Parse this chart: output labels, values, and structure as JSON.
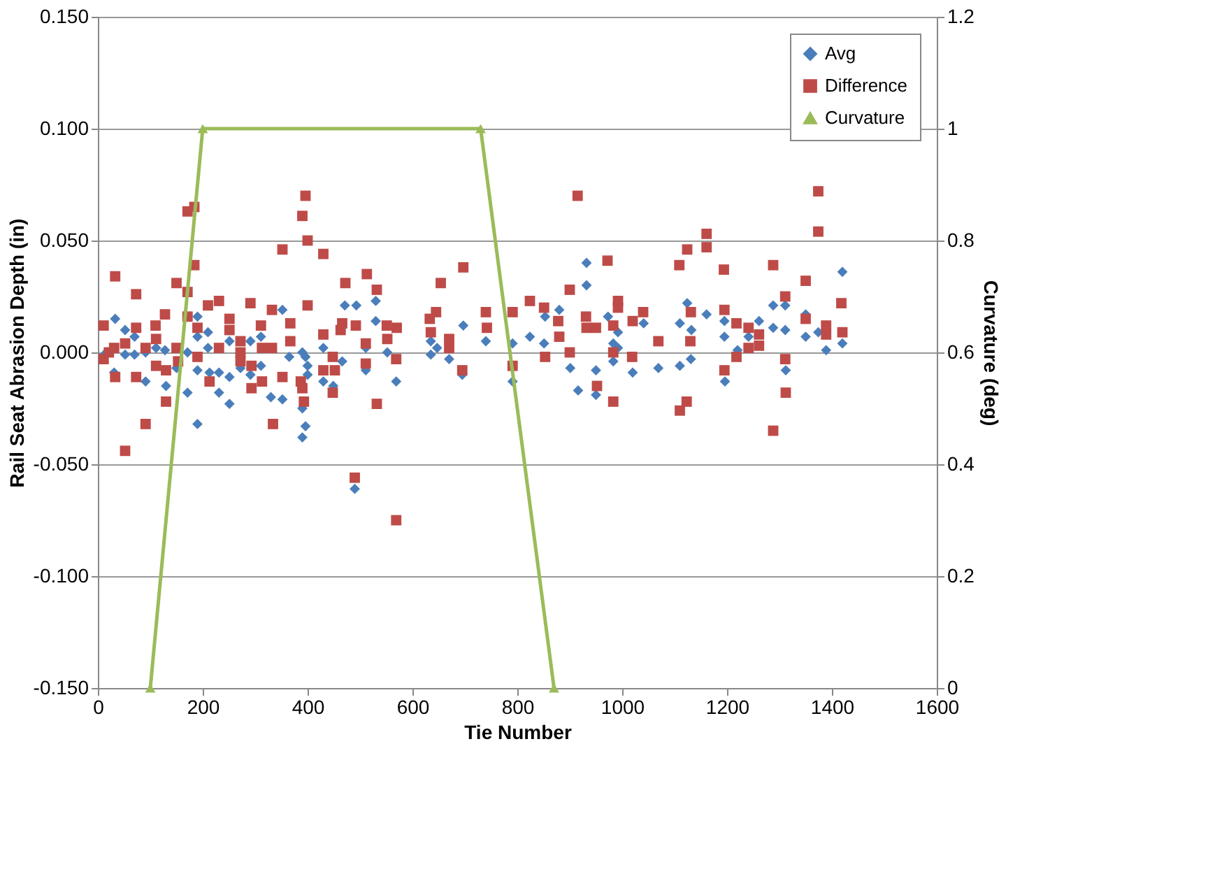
{
  "chart_data": {
    "type": "scatter",
    "xlabel": "Tie Number",
    "ylabel": "Rail Seat Abrasion Depth (in)",
    "y2label": "Curvature (deg)",
    "xlim": [
      0,
      1600
    ],
    "xticks": [
      0,
      200,
      400,
      600,
      800,
      1000,
      1200,
      1400,
      1600
    ],
    "ylim": [
      -0.15,
      0.15
    ],
    "yticks": [
      {
        "value": -0.15,
        "label": "-0.150"
      },
      {
        "value": -0.1,
        "label": "-0.100"
      },
      {
        "value": -0.05,
        "label": "-0.050"
      },
      {
        "value": 0,
        "label": "0.000"
      },
      {
        "value": 0.05,
        "label": "0.050"
      },
      {
        "value": 0.1,
        "label": "0.100"
      },
      {
        "value": 0.15,
        "label": "0.150"
      }
    ],
    "y2lim": [
      0,
      1.2
    ],
    "y2ticks": [
      0,
      0.2,
      0.4,
      0.6,
      0.8,
      1,
      1.2
    ],
    "grid": "y",
    "legend": "top right",
    "series": [
      {
        "name": "Avg",
        "marker": "diamond",
        "color": "#4a7ebb",
        "x": [
          33,
          52,
          52,
          70,
          70,
          91,
          91,
          111,
          128,
          130,
          150,
          171,
          171,
          190,
          190,
          190,
          190,
          210,
          210,
          213,
          231,
          231,
          251,
          251,
          251,
          272,
          291,
          291,
          311,
          311,
          330,
          352,
          352,
          365,
          390,
          390,
          396,
          400,
          400,
          396,
          390,
          12,
          31,
          471,
          493,
          530,
          530,
          430,
          466,
          511,
          552,
          569,
          430,
          449,
          511,
          635,
          635,
          647,
          670,
          697,
          695,
          740,
          791,
          791,
          490,
          932,
          932,
          824,
          851,
          880,
          853,
          901,
          916,
          950,
          950,
          973,
          992,
          983,
          992,
          983,
          1020,
          1041,
          1069,
          1110,
          1124,
          1132,
          1131,
          1110,
          1161,
          1195,
          1195,
          1196,
          1220,
          1420,
          1288,
          1311,
          1350,
          1241,
          1261,
          1288,
          1311,
          1350,
          1374,
          1389,
          1420,
          1312
        ],
        "values": [
          0.015,
          0.01,
          -0.001,
          0.007,
          -0.001,
          -0.013,
          0.0,
          0.002,
          0.001,
          -0.015,
          -0.007,
          -0.018,
          0.0,
          0.016,
          0.007,
          -0.008,
          -0.032,
          0.009,
          0.002,
          -0.009,
          -0.009,
          -0.018,
          0.005,
          -0.011,
          -0.023,
          -0.007,
          0.005,
          -0.01,
          0.007,
          -0.006,
          -0.02,
          0.019,
          -0.021,
          -0.002,
          0.0,
          -0.025,
          -0.002,
          -0.006,
          -0.01,
          -0.033,
          -0.038,
          -0.001,
          -0.009,
          0.021,
          0.021,
          0.023,
          0.014,
          0.002,
          -0.004,
          0.002,
          0.0,
          -0.013,
          -0.013,
          -0.015,
          -0.008,
          -0.001,
          0.005,
          0.002,
          -0.003,
          0.012,
          -0.01,
          0.005,
          0.004,
          -0.013,
          -0.061,
          0.04,
          0.03,
          0.007,
          0.004,
          0.019,
          0.016,
          -0.007,
          -0.017,
          -0.008,
          -0.019,
          0.016,
          0.009,
          0.004,
          0.002,
          -0.004,
          -0.009,
          0.013,
          -0.007,
          0.013,
          0.022,
          0.01,
          -0.003,
          -0.006,
          0.017,
          0.014,
          0.007,
          -0.013,
          0.001,
          0.036,
          0.021,
          0.021,
          0.017,
          0.007,
          0.014,
          0.011,
          0.01,
          0.007,
          0.009,
          0.001,
          0.004,
          -0.008
        ]
      },
      {
        "name": "Difference",
        "marker": "square",
        "color": "#be4b48",
        "x": [
          11,
          11,
          21,
          31,
          33,
          33,
          52,
          52,
          73,
          73,
          73,
          91,
          91,
          110,
          111,
          111,
          128,
          130,
          130,
          150,
          150,
          153,
          171,
          184,
          171,
          184,
          171,
          190,
          190,
          210,
          213,
          231,
          231,
          251,
          251,
          272,
          272,
          272,
          291,
          293,
          293,
          311,
          313,
          313,
          332,
          332,
          334,
          352,
          352,
          367,
          367,
          387,
          390,
          393,
          396,
          390,
          400,
          400,
          430,
          472,
          513,
          532,
          430,
          466,
          463,
          492,
          551,
          570,
          552,
          511,
          448,
          430,
          452,
          448,
          511,
          569,
          532,
          654,
          697,
          645,
          633,
          635,
          670,
          670,
          695,
          740,
          742,
          791,
          791,
          490,
          569,
          915,
          1161,
          1161,
          1124,
          1109,
          1194,
          972,
          900,
          824,
          851,
          878,
          880,
          931,
          932,
          950,
          983,
          992,
          992,
          1020,
          1040,
          1069,
          1131,
          1130,
          1195,
          1218,
          853,
          900,
          983,
          1019,
          1195,
          1218,
          952,
          983,
          1123,
          1110,
          1374,
          1374,
          1288,
          1350,
          1311,
          1418,
          1241,
          1261,
          1261,
          1241,
          1350,
          1389,
          1389,
          1420,
          1311,
          1312,
          1288
        ],
        "values": [
          0.012,
          -0.003,
          0.0,
          0.002,
          0.034,
          -0.011,
          0.004,
          -0.044,
          0.026,
          0.011,
          -0.011,
          0.002,
          -0.032,
          0.012,
          0.006,
          -0.006,
          0.017,
          -0.008,
          -0.022,
          0.031,
          0.002,
          -0.004,
          0.063,
          0.065,
          0.027,
          0.039,
          0.016,
          0.011,
          -0.002,
          0.021,
          -0.013,
          0.023,
          0.002,
          0.015,
          0.01,
          0.005,
          0.0,
          -0.004,
          0.022,
          -0.006,
          -0.016,
          0.012,
          0.002,
          -0.013,
          0.019,
          0.002,
          -0.032,
          0.046,
          -0.011,
          0.013,
          0.005,
          -0.013,
          -0.016,
          -0.022,
          0.07,
          0.061,
          0.05,
          0.021,
          0.044,
          0.031,
          0.035,
          0.028,
          0.008,
          0.013,
          0.01,
          0.012,
          0.012,
          0.011,
          0.006,
          0.004,
          -0.002,
          -0.008,
          -0.008,
          -0.018,
          -0.005,
          -0.003,
          -0.023,
          0.031,
          0.038,
          0.018,
          0.015,
          0.009,
          0.006,
          0.002,
          -0.008,
          0.018,
          0.011,
          0.018,
          -0.006,
          -0.056,
          -0.075,
          0.07,
          0.053,
          0.047,
          0.046,
          0.039,
          0.037,
          0.041,
          0.028,
          0.023,
          0.02,
          0.014,
          0.007,
          0.016,
          0.011,
          0.011,
          0.012,
          0.023,
          0.02,
          0.014,
          0.018,
          0.005,
          0.018,
          0.005,
          0.019,
          0.013,
          -0.002,
          0.0,
          0.0,
          -0.002,
          -0.008,
          -0.002,
          -0.015,
          -0.022,
          -0.022,
          -0.026,
          0.072,
          0.054,
          0.039,
          0.032,
          0.025,
          0.022,
          0.011,
          0.008,
          0.003,
          0.002,
          0.015,
          0.012,
          0.008,
          0.009,
          -0.003,
          -0.018,
          -0.035
        ]
      },
      {
        "name": "Curvature",
        "type": "line",
        "axis": "y2",
        "marker": "triangle",
        "color": "#9bbb59",
        "x": [
          100,
          200,
          730,
          870
        ],
        "values": [
          0,
          1,
          1,
          0
        ]
      }
    ]
  }
}
